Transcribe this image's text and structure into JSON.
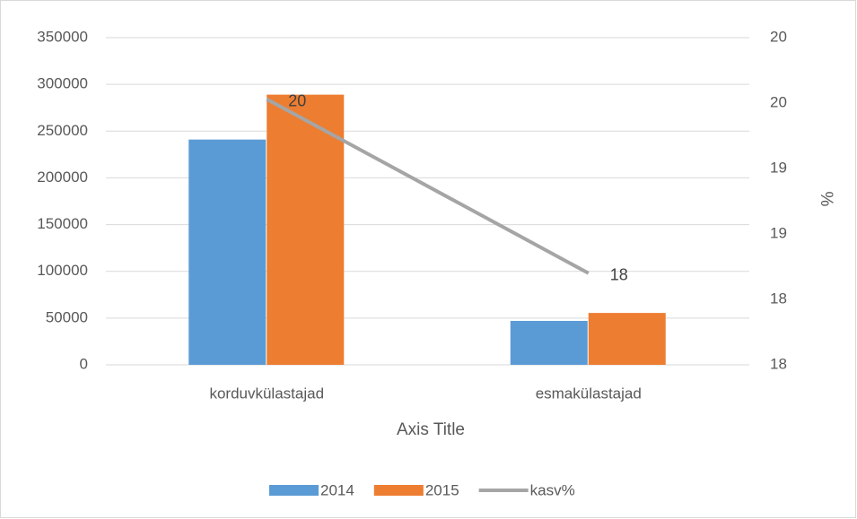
{
  "chart_data": {
    "type": "bar-line",
    "categories": [
      "korduvkülastajad",
      "esmakülastajad"
    ],
    "x_label": "Axis Title",
    "y2_label": "%",
    "series": [
      {
        "name": "2014",
        "type": "bar",
        "color": "#5b9bd5",
        "values": [
          241000,
          47000
        ]
      },
      {
        "name": "2015",
        "type": "bar",
        "color": "#ed7d31",
        "values": [
          289000,
          55500
        ]
      },
      {
        "name": "kasv%",
        "type": "line",
        "axis": "y2",
        "color": "#a5a5a5",
        "values": [
          19.53,
          18.2
        ],
        "value_labels": [
          "20",
          "18"
        ]
      }
    ],
    "ylim": [
      0,
      350000
    ],
    "yticks": [
      0,
      50000,
      100000,
      150000,
      200000,
      250000,
      300000,
      350000
    ],
    "y2lim": [
      17.5,
      20
    ],
    "y2ticks": [
      {
        "value": 17.5,
        "label": "18"
      },
      18,
      {
        "value": 18.5,
        "label": "19"
      },
      19,
      {
        "value": 19.5,
        "label": "20"
      },
      20
    ],
    "grid": true,
    "legend": "bottom"
  }
}
